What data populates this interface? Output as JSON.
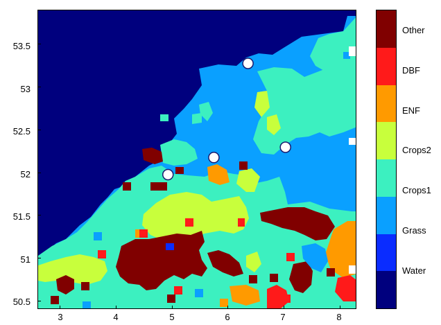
{
  "axes": {
    "x_ticks": [
      "3",
      "4",
      "5",
      "6",
      "7",
      "8"
    ],
    "y_ticks": [
      "53.5",
      "53",
      "52.5",
      "52",
      "51.5",
      "51",
      "50.5"
    ],
    "x_values": [
      3,
      4,
      5,
      6,
      7,
      8
    ],
    "y_values": [
      53.5,
      53,
      52.5,
      52,
      51.5,
      51,
      50.5
    ],
    "xlim": [
      2.6,
      8.3
    ],
    "ylim": [
      50.4,
      53.9
    ]
  },
  "colorbar": {
    "labels": [
      "Other",
      "DBF",
      "ENF",
      "Crops2",
      "Crops1",
      "Grass",
      "Water"
    ],
    "colors": [
      "#800000",
      "#ff1a1a",
      "#ff9a00",
      "#c8ff3c",
      "#3cf0c0",
      "#0aa0ff",
      "#0a2cff",
      "#00007e"
    ]
  },
  "classes": {
    "ocean": "#00007e",
    "water": "#0a2cff",
    "grass": "#0aa0ff",
    "crops1": "#3cf0c0",
    "crops2": "#c8ff3c",
    "enf": "#ff9a00",
    "dbf": "#ff1a1a",
    "other": "#800000",
    "marker_fill": "#ffffff",
    "marker_stroke": "#1a1a6e"
  },
  "sites": [
    {
      "lon": 6.35,
      "lat": 53.28
    },
    {
      "lon": 7.02,
      "lat": 52.3
    },
    {
      "lon": 5.74,
      "lat": 52.18
    },
    {
      "lon": 4.92,
      "lat": 51.98
    }
  ]
}
